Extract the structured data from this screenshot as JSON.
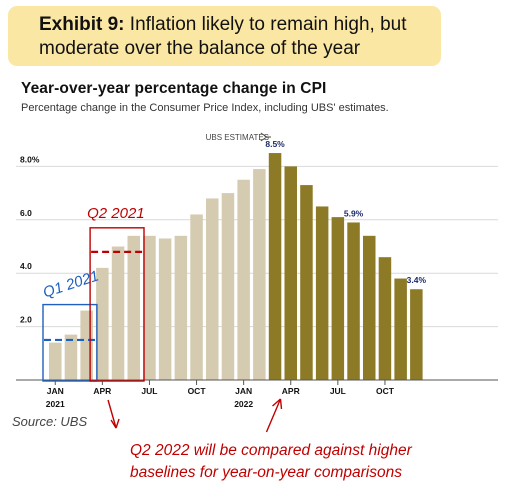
{
  "exhibit": {
    "label": "Exhibit 9:",
    "headline_line1": "Inflation likely to remain high, but",
    "headline_line2": "moderate over the balance of the year"
  },
  "source": "Source: UBS",
  "annotation": {
    "line1": "Q2 2022 will be compared against higher",
    "line2": "baselines for year-on-year comparisons",
    "color": "#c00000"
  },
  "chart_data": {
    "type": "bar",
    "title": "Year-over-year percentage change in CPI",
    "subtitle": "Percentage change in the Consumer Price Index, including UBS' estimates.",
    "ylim": [
      0,
      9
    ],
    "y_ticks": [
      "2.0",
      "4.0",
      "6.0",
      "8.0%"
    ],
    "y_tick_values": [
      2,
      4,
      6,
      8
    ],
    "x_tick_labels": [
      {
        "label": "JAN",
        "sublabel": "2021",
        "index": 0
      },
      {
        "label": "APR",
        "sublabel": "",
        "index": 3
      },
      {
        "label": "JUL",
        "sublabel": "",
        "index": 6
      },
      {
        "label": "OCT",
        "sublabel": "",
        "index": 9
      },
      {
        "label": "JAN",
        "sublabel": "2022",
        "index": 12
      },
      {
        "label": "APR",
        "sublabel": "",
        "index": 15
      },
      {
        "label": "JUL",
        "sublabel": "",
        "index": 18
      },
      {
        "label": "OCT",
        "sublabel": "",
        "index": 21
      }
    ],
    "categories": [
      "2021-01",
      "2021-02",
      "2021-03",
      "2021-04",
      "2021-05",
      "2021-06",
      "2021-07",
      "2021-08",
      "2021-09",
      "2021-10",
      "2021-11",
      "2021-12",
      "2022-01",
      "2022-02",
      "2022-03",
      "2022-04",
      "2022-05",
      "2022-06",
      "2022-07",
      "2022-08",
      "2022-09",
      "2022-10",
      "2022-11",
      "2022-12"
    ],
    "series": [
      {
        "values": [
          1.4,
          1.7,
          2.6,
          4.2,
          5.0,
          5.4,
          5.4,
          5.3,
          5.4,
          6.2,
          6.8,
          7.0,
          7.5,
          7.9,
          8.5,
          8.0,
          7.3,
          6.5,
          6.1,
          5.9,
          5.4,
          4.6,
          3.8,
          3.4
        ],
        "estimate": [
          false,
          false,
          false,
          false,
          false,
          false,
          false,
          false,
          false,
          false,
          false,
          false,
          false,
          false,
          true,
          true,
          true,
          true,
          true,
          true,
          true,
          true,
          true,
          true
        ]
      }
    ],
    "colors": {
      "actual": "#d4cbb1",
      "estimate": "#8c7a26"
    },
    "data_labels": [
      {
        "index": 14,
        "text": "8.5%"
      },
      {
        "index": 19,
        "text": "5.9%"
      },
      {
        "index": 23,
        "text": "3.4%"
      }
    ],
    "estimates_label": "UBS ESTIMATES",
    "grid": true,
    "highlights": [
      {
        "label": "Q1 2021",
        "start_index": 0,
        "end_index": 2,
        "baseline": 1.5,
        "color": "#1f5fbf"
      },
      {
        "label": "Q2 2021",
        "start_index": 3,
        "end_index": 5,
        "baseline": 4.8,
        "color": "#c00000"
      }
    ]
  }
}
